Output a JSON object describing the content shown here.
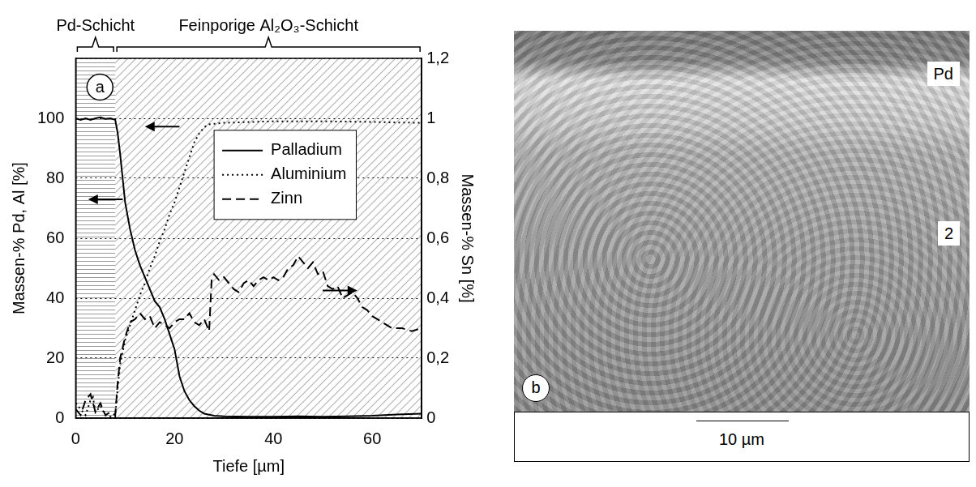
{
  "chart_data": {
    "type": "line",
    "panel_label": "a",
    "x_label": "Tiefe [µm]",
    "y_label": "Massen-% Pd, Al [%]",
    "y2_label": "Massen-% Sn [%]",
    "xlim": [
      0,
      70
    ],
    "xticks": [
      0,
      20,
      40,
      60
    ],
    "ylim": [
      0,
      120
    ],
    "yticks": [
      0,
      20,
      40,
      60,
      80,
      100
    ],
    "y2lim": [
      0,
      1.2
    ],
    "y2ticks": [
      0,
      {
        "value": 0.2,
        "label": "0,2"
      },
      {
        "value": 0.4,
        "label": "0,4"
      },
      {
        "value": 0.6,
        "label": "0,6"
      },
      {
        "value": 0.8,
        "label": "0,8"
      },
      1,
      {
        "value": 1.2,
        "label": "1,2"
      }
    ],
    "grid": true,
    "legend": "right",
    "regions": [
      {
        "label": "Pd-Schicht",
        "x": [
          0,
          8
        ]
      },
      {
        "label": "Feinporige Al₂O₃-Schicht",
        "x": [
          8,
          70
        ]
      }
    ],
    "series": [
      {
        "name": "Palladium",
        "color": "#000000",
        "line_style": "solid",
        "x": [
          0,
          1,
          2,
          3,
          4,
          5,
          6,
          7,
          8,
          8.5,
          9,
          9.5,
          10,
          11,
          12,
          13,
          14,
          15,
          16,
          17,
          18,
          19,
          20,
          21,
          22,
          23,
          24,
          25,
          26,
          28,
          30,
          35,
          40,
          45,
          50,
          55,
          60,
          65,
          70
        ],
        "values": [
          100,
          99.5,
          100,
          99.5,
          100,
          100.3,
          99.8,
          100,
          99.5,
          95,
          88,
          80,
          72,
          63,
          56,
          51,
          47,
          43,
          39,
          37,
          33,
          28,
          23,
          14,
          9,
          6,
          4,
          2.5,
          1.5,
          0.8,
          0.6,
          0.5,
          0.5,
          0.6,
          0.5,
          0.6,
          0.8,
          1.2,
          1.5
        ]
      },
      {
        "name": "Aluminium",
        "color": "#000000",
        "line_style": "dotted",
        "x": [
          0,
          1,
          2,
          3,
          3.5,
          4,
          5,
          6,
          7,
          8,
          8.5,
          9,
          10,
          11,
          12,
          13,
          14,
          15,
          16,
          17,
          18,
          19,
          20,
          21,
          22,
          23,
          24,
          25,
          26,
          27,
          30,
          40,
          50,
          60,
          65,
          70
        ],
        "values": [
          5,
          3,
          1,
          6,
          7,
          2,
          4,
          1,
          0.5,
          0.5,
          10,
          18,
          26,
          31,
          36,
          41,
          45,
          50,
          54,
          59,
          63,
          68,
          72,
          77,
          82,
          87,
          92,
          95,
          97,
          98,
          98.5,
          99,
          99,
          98.8,
          98.6,
          98.5
        ]
      },
      {
        "name": "Zinn",
        "color": "#000000",
        "line_style": "dashed",
        "axis": "y2",
        "x": [
          0,
          1,
          2,
          3,
          4,
          5,
          6,
          7,
          8,
          8.5,
          9,
          10,
          11,
          12,
          13,
          14,
          15,
          16,
          17,
          18,
          19,
          20,
          21,
          22,
          23,
          24,
          25,
          26,
          27,
          27.5,
          28,
          29,
          30,
          31,
          32,
          33,
          34,
          35,
          36,
          37,
          38,
          39,
          40,
          41,
          42,
          43,
          44,
          45,
          46,
          47,
          48,
          49,
          50,
          51,
          52,
          53,
          54,
          55,
          56,
          57,
          58,
          59,
          60,
          62,
          64,
          66,
          68,
          70
        ],
        "values": [
          0.03,
          0.01,
          0.06,
          0.08,
          0.02,
          0.05,
          0.01,
          0.02,
          0.01,
          0.12,
          0.2,
          0.27,
          0.32,
          0.33,
          0.35,
          0.33,
          0.34,
          0.3,
          0.32,
          0.31,
          0.3,
          0.32,
          0.33,
          0.33,
          0.35,
          0.32,
          0.31,
          0.33,
          0.29,
          0.46,
          0.48,
          0.46,
          0.47,
          0.45,
          0.43,
          0.42,
          0.45,
          0.46,
          0.44,
          0.46,
          0.47,
          0.46,
          0.47,
          0.46,
          0.47,
          0.5,
          0.51,
          0.54,
          0.52,
          0.5,
          0.52,
          0.48,
          0.49,
          0.44,
          0.43,
          0.44,
          0.4,
          0.41,
          0.42,
          0.4,
          0.37,
          0.36,
          0.34,
          0.32,
          0.3,
          0.3,
          0.29,
          0.3
        ]
      }
    ]
  },
  "image": {
    "panel_label": "b",
    "labels": [
      "Pd",
      "2"
    ],
    "scale_bar": "10 µm"
  }
}
